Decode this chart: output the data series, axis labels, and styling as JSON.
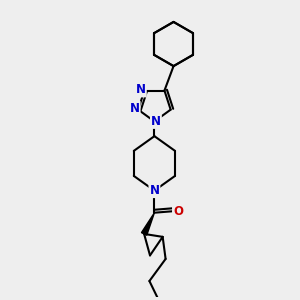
{
  "bg_color": "#eeeeee",
  "bond_color": "#000000",
  "n_color": "#0000cc",
  "o_color": "#cc0000",
  "bond_width": 1.5,
  "font_size_atom": 8.5,
  "fig_width": 3.0,
  "fig_height": 3.0,
  "dpi": 100,
  "xlim": [
    0,
    10
  ],
  "ylim": [
    0,
    10
  ]
}
